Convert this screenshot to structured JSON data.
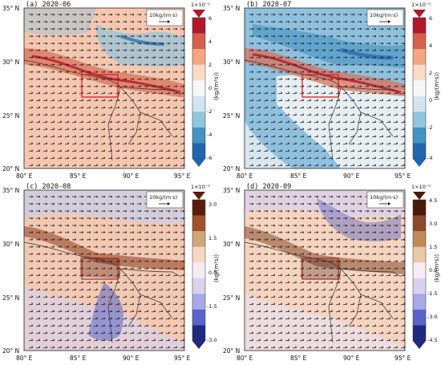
{
  "figure": {
    "panels": [
      {
        "id": "a",
        "title": "(a)  2020-06",
        "scale_label": "10kg/(m·s)",
        "multiplier": "1×10⁻⁵",
        "unit": "(kg/(m²s))",
        "colorbar_ticks": [
          "6",
          "4",
          "2",
          "0",
          "-2",
          "-4",
          "-6"
        ],
        "colorbar_colors": [
          "#b2182b",
          "#d6604d",
          "#f4a582",
          "#fddbc7",
          "#f7f7f7",
          "#d1e5f0",
          "#92c5de",
          "#4393c3",
          "#2166ac"
        ],
        "background": "#f6c7b0"
      },
      {
        "id": "b",
        "title": "(b)  2020-07",
        "scale_label": "10kg/(m·s)",
        "multiplier": "1×10⁻⁵",
        "unit": "(kg/(m²s))",
        "colorbar_ticks": [
          "6",
          "4",
          "2",
          "0",
          "-2",
          "-4"
        ],
        "colorbar_colors": [
          "#b2182b",
          "#d6604d",
          "#f4a582",
          "#fddbc7",
          "#f7f7f7",
          "#d1e5f0",
          "#92c5de",
          "#4393c3",
          "#2166ac"
        ],
        "background": "#8fc1de"
      },
      {
        "id": "c",
        "title": "(c)  2020-08",
        "scale_label": "10kg/(m·s)",
        "multiplier": "1×10⁻⁵",
        "unit": "(kg/(m²s))",
        "colorbar_ticks": [
          "3.0",
          "1.5",
          "0.0",
          "-1.5",
          "-3.0"
        ],
        "colorbar_colors": [
          "#5a1e0e",
          "#a0522d",
          "#d2a679",
          "#f6d7c3",
          "#f7ecf5",
          "#d9d2ef",
          "#a9a9e8",
          "#5a64c8",
          "#1e2a80"
        ],
        "background": "#f3c9b3"
      },
      {
        "id": "d",
        "title": "(d)  2020-09",
        "scale_label": "10kg/(m·s)",
        "multiplier": "1×10⁻⁵",
        "unit": "(kg/(m²s))",
        "colorbar_ticks": [
          "4.5",
          "3.0",
          "1.5",
          "0.0",
          "-1.5",
          "-3.0",
          "-4.5"
        ],
        "colorbar_colors": [
          "#4a1a0c",
          "#8b4a2b",
          "#c08a5a",
          "#e8c9a8",
          "#f7ecf5",
          "#d9d2ef",
          "#a9a9e8",
          "#5a64c8",
          "#1e2a80"
        ],
        "background": "#f6d4c0"
      }
    ],
    "lat_labels": [
      "35° N",
      "30° N",
      "25° N",
      "20° N"
    ],
    "lon_labels": [
      "80° E",
      "85° E",
      "90° E",
      "95° E"
    ]
  }
}
